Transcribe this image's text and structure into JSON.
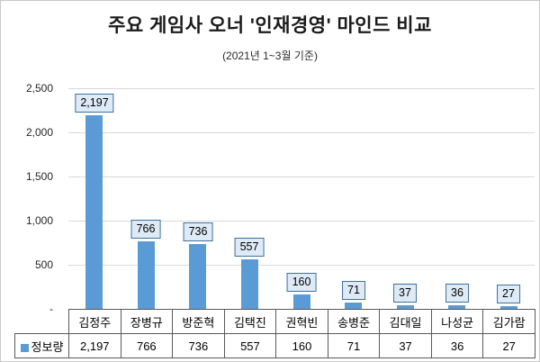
{
  "chart_data": {
    "type": "bar",
    "title": "주요 게임사 오너 '인재경영' 마인드 비교",
    "subtitle": "(2021년 1~3월 기준)",
    "categories": [
      "김정주",
      "장병규",
      "방준혁",
      "김택진",
      "권혁빈",
      "송병준",
      "김대일",
      "나성균",
      "김가람"
    ],
    "series": [
      {
        "name": "정보량",
        "values": [
          2197,
          766,
          736,
          557,
          160,
          71,
          37,
          36,
          27
        ]
      }
    ],
    "value_labels": [
      "2,197",
      "766",
      "736",
      "557",
      "160",
      "71",
      "37",
      "36",
      "27"
    ],
    "ylim": [
      0,
      2500
    ],
    "ytick_step": 500,
    "ytick_labels": [
      "2,500",
      "2,000",
      "1,500",
      "1,000",
      "500",
      "-"
    ],
    "grid": true,
    "legend_position": "table-left",
    "xlabel": "",
    "ylabel": "",
    "colors": {
      "bar": "#5B9BD5",
      "label_fill": "#DEEBF7",
      "label_border": "#41719C",
      "gridline": "#D9D9D9",
      "table_border": "#595959"
    }
  }
}
